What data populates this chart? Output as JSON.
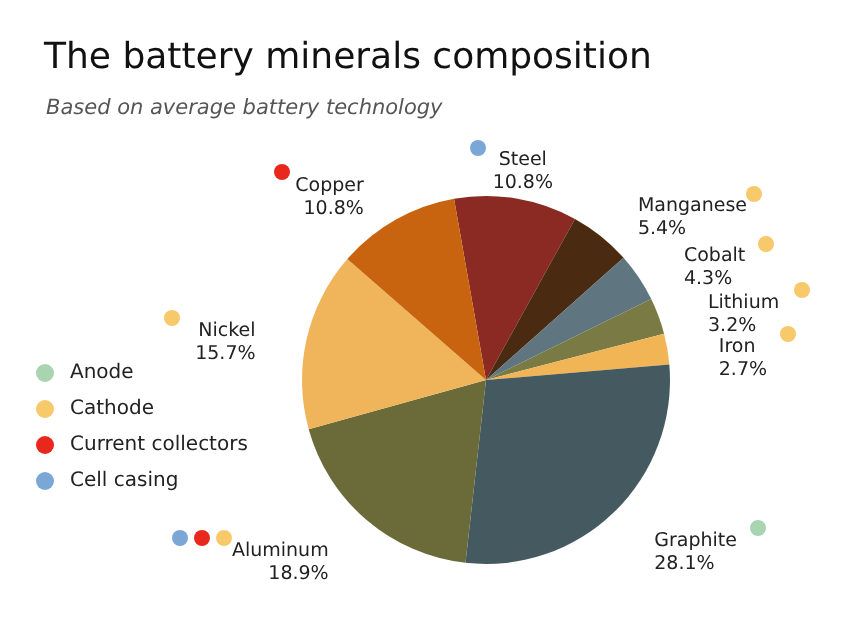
{
  "chart_data": {
    "type": "pie",
    "title": "The battery minerals composition",
    "subtitle": "Based on average battery technology",
    "categories": [
      "Steel",
      "Manganese",
      "Cobalt",
      "Lithium",
      "Iron",
      "Graphite",
      "Aluminum",
      "Nickel",
      "Copper"
    ],
    "values": [
      10.8,
      5.4,
      4.3,
      3.2,
      2.7,
      28.1,
      18.9,
      15.7,
      10.8
    ],
    "colors": [
      "#8b2a22",
      "#4a2a10",
      "#5f7580",
      "#7a7a45",
      "#f2b555",
      "#455a60",
      "#6b6b3a",
      "#f0b55a",
      "#c8640f"
    ],
    "value_labels": [
      "10.8%",
      "5.4%",
      "4.3%",
      "3.2%",
      "2.7%",
      "28.1%",
      "18.9%",
      "15.7%",
      "10.8%"
    ],
    "annotations": [
      "Anode",
      "Cathode",
      "Current collectors",
      "Cell casing"
    ]
  }
}
